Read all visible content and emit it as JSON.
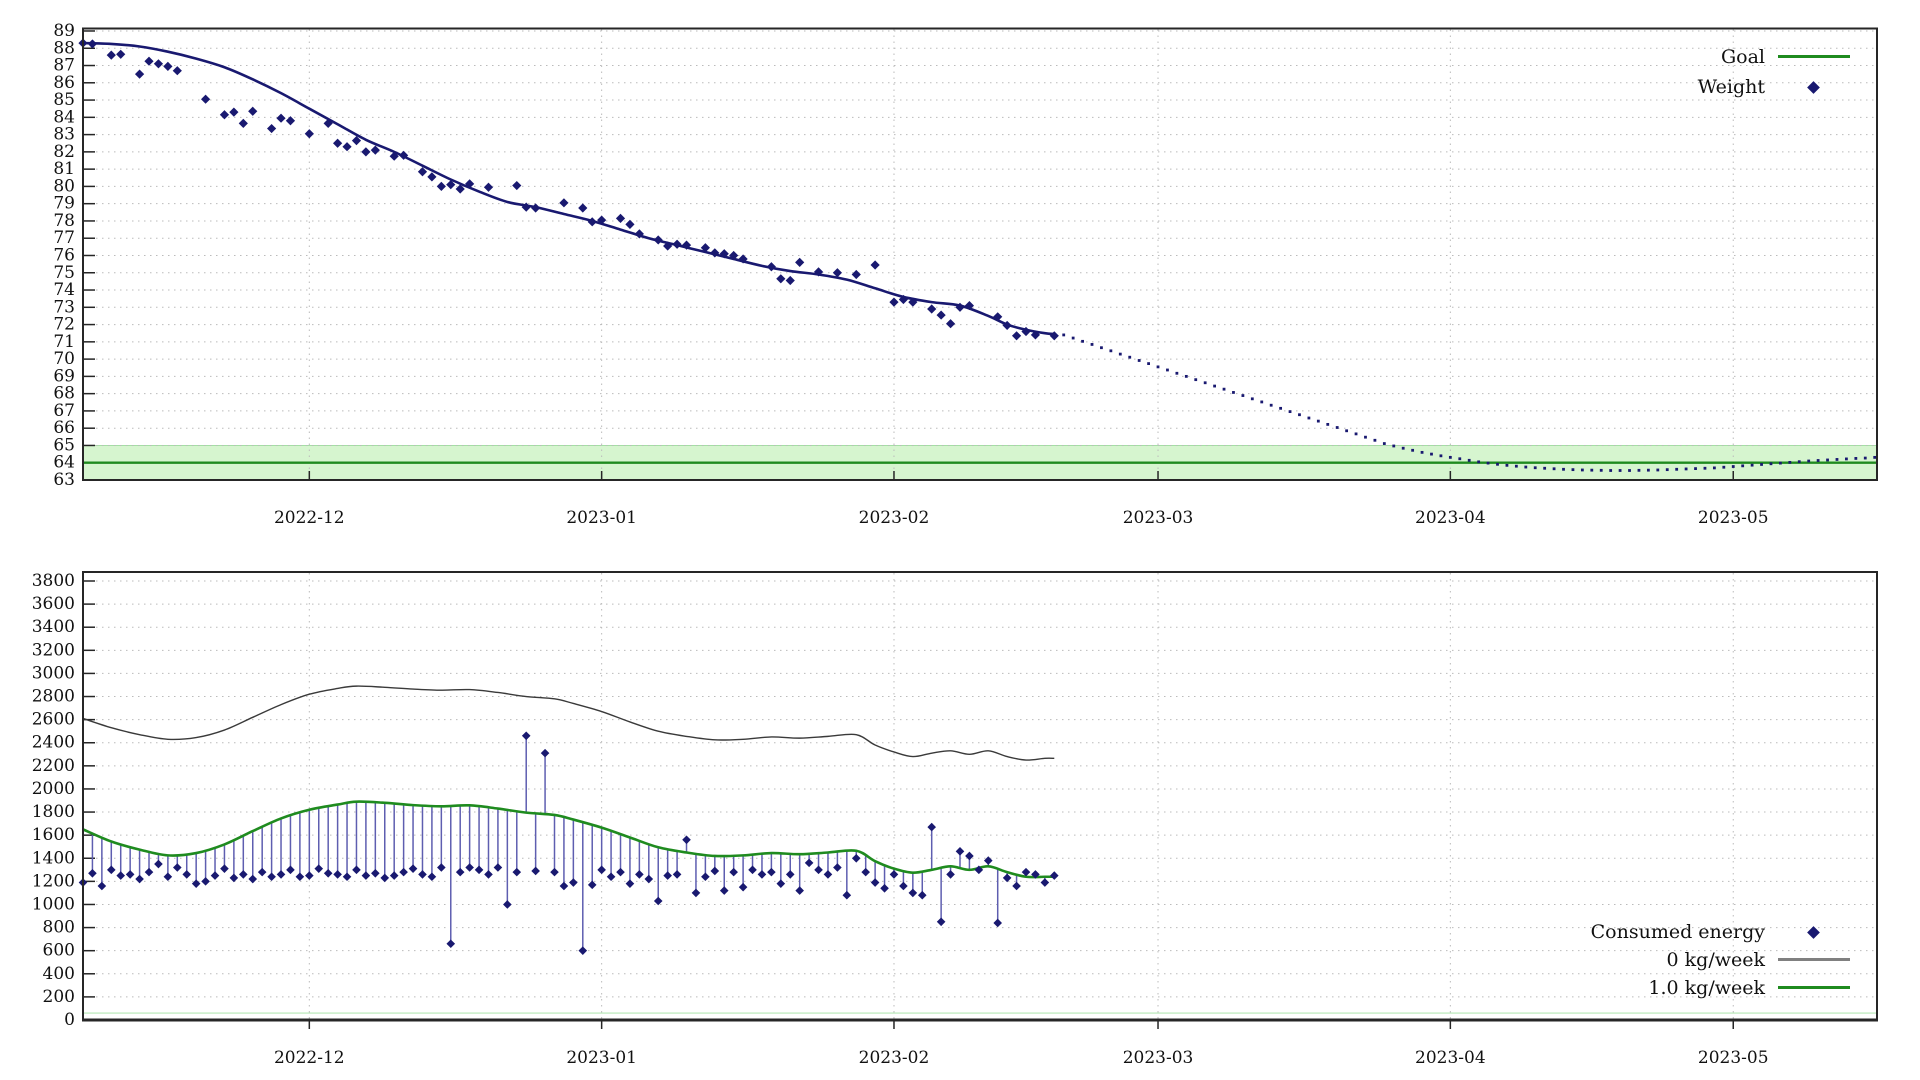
{
  "figure": {
    "background": "#ffffff",
    "axis_color": "#262626",
    "grid_color": "#bbbbbb",
    "text_color": "#111111"
  },
  "colors": {
    "navy": "#191970",
    "impulse_blue": "#5e5eb0",
    "goal_green": "#1f8b1f",
    "band_fill": "#d6f5cf",
    "band_edge": "#a4dfa4",
    "pale_green": "#b5e8b5",
    "maintenance_gray": "#3a3a3a",
    "legend_gray": "#808080"
  },
  "x_axis": {
    "tick_labels": [
      "2022-12",
      "2023-01",
      "2023-02",
      "2023-03",
      "2023-04",
      "2023-05"
    ],
    "tick_t": [
      24,
      55,
      86,
      114,
      145,
      175
    ],
    "t_min": 0,
    "t_max": 190
  },
  "chart_data": [
    {
      "id": "weight-panel",
      "type": "scatter",
      "title": "",
      "ylabel": "",
      "ylim": [
        63,
        89.2
      ],
      "y_ticks": [
        63,
        64,
        65,
        66,
        67,
        68,
        69,
        70,
        71,
        72,
        73,
        74,
        75,
        76,
        77,
        78,
        79,
        80,
        81,
        82,
        83,
        84,
        85,
        86,
        87,
        88,
        89
      ],
      "legend": [
        {
          "label": "Goal",
          "marker": "line",
          "color": "#1f8b1f"
        },
        {
          "label": "Weight",
          "marker": "diamond",
          "color": "#191970"
        }
      ],
      "goal": {
        "value": 64,
        "band_low": 63,
        "band_high": 65
      },
      "weight_points": [
        [
          0,
          88.3
        ],
        [
          1,
          88.25
        ],
        [
          3,
          87.6
        ],
        [
          4,
          87.65
        ],
        [
          6,
          86.5
        ],
        [
          7,
          87.25
        ],
        [
          8,
          87.1
        ],
        [
          9,
          86.95
        ],
        [
          10,
          86.7
        ],
        [
          13,
          85.05
        ],
        [
          15,
          84.15
        ],
        [
          16,
          84.3
        ],
        [
          17,
          83.65
        ],
        [
          18,
          84.35
        ],
        [
          20,
          83.35
        ],
        [
          21,
          83.95
        ],
        [
          22,
          83.8
        ],
        [
          24,
          83.05
        ],
        [
          26,
          83.65
        ],
        [
          27,
          82.5
        ],
        [
          28,
          82.3
        ],
        [
          29,
          82.65
        ],
        [
          30,
          82.0
        ],
        [
          31,
          82.1
        ],
        [
          33,
          81.75
        ],
        [
          34,
          81.8
        ],
        [
          36,
          80.85
        ],
        [
          37,
          80.55
        ],
        [
          38,
          80.0
        ],
        [
          39,
          80.1
        ],
        [
          40,
          79.85
        ],
        [
          41,
          80.15
        ],
        [
          43,
          79.95
        ],
        [
          46,
          80.05
        ],
        [
          47,
          78.8
        ],
        [
          48,
          78.75
        ],
        [
          51,
          79.05
        ],
        [
          53,
          78.75
        ],
        [
          54,
          77.95
        ],
        [
          55,
          78.05
        ],
        [
          57,
          78.15
        ],
        [
          58,
          77.8
        ],
        [
          59,
          77.25
        ],
        [
          61,
          76.9
        ],
        [
          62,
          76.55
        ],
        [
          63,
          76.65
        ],
        [
          64,
          76.6
        ],
        [
          66,
          76.45
        ],
        [
          67,
          76.15
        ],
        [
          68,
          76.1
        ],
        [
          69,
          76.0
        ],
        [
          70,
          75.8
        ],
        [
          73,
          75.35
        ],
        [
          74,
          74.65
        ],
        [
          75,
          74.55
        ],
        [
          76,
          75.6
        ],
        [
          78,
          75.05
        ],
        [
          80,
          75.0
        ],
        [
          82,
          74.9
        ],
        [
          84,
          75.45
        ],
        [
          86,
          73.3
        ],
        [
          87,
          73.45
        ],
        [
          88,
          73.3
        ],
        [
          90,
          72.9
        ],
        [
          91,
          72.55
        ],
        [
          92,
          72.05
        ],
        [
          93,
          73.0
        ],
        [
          94,
          73.1
        ],
        [
          97,
          72.45
        ],
        [
          98,
          71.95
        ],
        [
          99,
          71.35
        ],
        [
          100,
          71.6
        ],
        [
          101,
          71.4
        ],
        [
          103,
          71.35
        ]
      ],
      "trend": [
        [
          0,
          88.3
        ],
        [
          3,
          88.25
        ],
        [
          6,
          88.1
        ],
        [
          9,
          87.8
        ],
        [
          12,
          87.4
        ],
        [
          15,
          86.9
        ],
        [
          18,
          86.2
        ],
        [
          21,
          85.4
        ],
        [
          24,
          84.5
        ],
        [
          27,
          83.6
        ],
        [
          30,
          82.7
        ],
        [
          33,
          82.0
        ],
        [
          36,
          81.2
        ],
        [
          39,
          80.4
        ],
        [
          42,
          79.7
        ],
        [
          45,
          79.1
        ],
        [
          48,
          78.8
        ],
        [
          51,
          78.4
        ],
        [
          54,
          78.0
        ],
        [
          57,
          77.5
        ],
        [
          60,
          77.0
        ],
        [
          63,
          76.6
        ],
        [
          66,
          76.2
        ],
        [
          69,
          75.8
        ],
        [
          72,
          75.4
        ],
        [
          75,
          75.1
        ],
        [
          78,
          74.9
        ],
        [
          81,
          74.6
        ],
        [
          84,
          74.1
        ],
        [
          87,
          73.6
        ],
        [
          90,
          73.3
        ],
        [
          93,
          73.1
        ],
        [
          96,
          72.5
        ],
        [
          98,
          72.0
        ],
        [
          100,
          71.7
        ],
        [
          102,
          71.5
        ],
        [
          103,
          71.45
        ]
      ],
      "projection": {
        "t_start": 104,
        "values": [
          71.4,
          71.22,
          71.03,
          70.85,
          70.66,
          70.48,
          70.29,
          70.11,
          69.92,
          69.74,
          69.55,
          69.37,
          69.18,
          69.0,
          68.81,
          68.63,
          68.44,
          68.26,
          68.07,
          67.89,
          67.7,
          67.52,
          67.33,
          67.15,
          66.96,
          66.78,
          66.59,
          66.41,
          66.22,
          66.04,
          65.85,
          65.67,
          65.48,
          65.3,
          65.11,
          64.97,
          64.84,
          64.72,
          64.6,
          64.5,
          64.4,
          64.31,
          64.23,
          64.14,
          64.05,
          63.98,
          63.91,
          63.85,
          63.8,
          63.75,
          63.71,
          63.68,
          63.65,
          63.62,
          63.6,
          63.58,
          63.57,
          63.56,
          63.55,
          63.55,
          63.55,
          63.56,
          63.57,
          63.58,
          63.6,
          63.62,
          63.64,
          63.66,
          63.68,
          63.7,
          63.74,
          63.78,
          63.82,
          63.86,
          63.9,
          63.94,
          63.98,
          64.02,
          64.06,
          64.1,
          64.13,
          64.16,
          64.19,
          64.22,
          64.25,
          64.27,
          64.31
        ]
      }
    },
    {
      "id": "energy-panel",
      "type": "scatter",
      "title": "",
      "ylabel": "",
      "ylim": [
        0,
        3880
      ],
      "y_ticks": [
        0,
        200,
        400,
        600,
        800,
        1000,
        1200,
        1400,
        1600,
        1800,
        2000,
        2200,
        2400,
        2600,
        2800,
        3000,
        3200,
        3400,
        3600,
        3800
      ],
      "legend": [
        {
          "label": "Consumed energy",
          "marker": "diamond",
          "color": "#191970"
        },
        {
          "label": "0 kg/week",
          "marker": "line",
          "color": "#808080"
        },
        {
          "label": "1.0 kg/week",
          "marker": "line",
          "color": "#1f8b1f"
        }
      ],
      "baseline_value": 60,
      "consumed": [
        1190,
        1270,
        1160,
        1300,
        1250,
        1260,
        1220,
        1280,
        1350,
        1240,
        1320,
        1260,
        1180,
        1200,
        1250,
        1310,
        1230,
        1260,
        1220,
        1280,
        1240,
        1260,
        1300,
        1240,
        1250,
        1310,
        1270,
        1260,
        1240,
        1300,
        1250,
        1270,
        1230,
        1250,
        1280,
        1310,
        1260,
        1240,
        1320,
        660,
        1280,
        1320,
        1300,
        1260,
        1320,
        1000,
        1280,
        2460,
        1290,
        2310,
        1280,
        1160,
        1190,
        600,
        1170,
        1300,
        1240,
        1280,
        1180,
        1260,
        1220,
        1030,
        1250,
        1260,
        1560,
        1100,
        1240,
        1290,
        1120,
        1280,
        1150,
        1300,
        1260,
        1280,
        1180,
        1260,
        1120,
        1360,
        1300,
        1260,
        1320,
        1080,
        1400,
        1280,
        1190,
        1140,
        1260,
        1160,
        1100,
        1080,
        1670,
        850,
        1260,
        1460,
        1420,
        1300,
        1380,
        840,
        1230,
        1160,
        1280,
        1260,
        1190,
        1250
      ],
      "maintenance": [
        [
          0,
          2610
        ],
        [
          3,
          2530
        ],
        [
          6,
          2470
        ],
        [
          9,
          2430
        ],
        [
          12,
          2445
        ],
        [
          15,
          2510
        ],
        [
          18,
          2620
        ],
        [
          21,
          2730
        ],
        [
          24,
          2820
        ],
        [
          27,
          2870
        ],
        [
          29,
          2890
        ],
        [
          32,
          2880
        ],
        [
          35,
          2865
        ],
        [
          38,
          2855
        ],
        [
          41,
          2860
        ],
        [
          44,
          2835
        ],
        [
          47,
          2800
        ],
        [
          50,
          2780
        ],
        [
          52,
          2740
        ],
        [
          55,
          2670
        ],
        [
          58,
          2580
        ],
        [
          61,
          2500
        ],
        [
          64,
          2455
        ],
        [
          67,
          2425
        ],
        [
          70,
          2430
        ],
        [
          73,
          2450
        ],
        [
          76,
          2440
        ],
        [
          79,
          2455
        ],
        [
          82,
          2470
        ],
        [
          84,
          2380
        ],
        [
          86,
          2320
        ],
        [
          88,
          2280
        ],
        [
          90,
          2310
        ],
        [
          92,
          2330
        ],
        [
          94,
          2300
        ],
        [
          96,
          2330
        ],
        [
          98,
          2280
        ],
        [
          100,
          2250
        ],
        [
          102,
          2265
        ],
        [
          103,
          2265
        ]
      ],
      "target": [
        [
          0,
          1650
        ],
        [
          3,
          1545
        ],
        [
          6,
          1475
        ],
        [
          9,
          1425
        ],
        [
          12,
          1445
        ],
        [
          15,
          1520
        ],
        [
          18,
          1635
        ],
        [
          21,
          1745
        ],
        [
          24,
          1820
        ],
        [
          27,
          1865
        ],
        [
          29,
          1890
        ],
        [
          32,
          1880
        ],
        [
          35,
          1860
        ],
        [
          38,
          1850
        ],
        [
          41,
          1858
        ],
        [
          44,
          1830
        ],
        [
          47,
          1795
        ],
        [
          50,
          1775
        ],
        [
          52,
          1735
        ],
        [
          55,
          1665
        ],
        [
          58,
          1580
        ],
        [
          61,
          1495
        ],
        [
          64,
          1450
        ],
        [
          67,
          1420
        ],
        [
          70,
          1425
        ],
        [
          73,
          1445
        ],
        [
          76,
          1435
        ],
        [
          79,
          1450
        ],
        [
          82,
          1465
        ],
        [
          84,
          1375
        ],
        [
          86,
          1310
        ],
        [
          88,
          1275
        ],
        [
          90,
          1300
        ],
        [
          92,
          1330
        ],
        [
          94,
          1300
        ],
        [
          96,
          1330
        ],
        [
          98,
          1280
        ],
        [
          100,
          1240
        ],
        [
          102,
          1240
        ],
        [
          103,
          1240
        ]
      ]
    }
  ]
}
